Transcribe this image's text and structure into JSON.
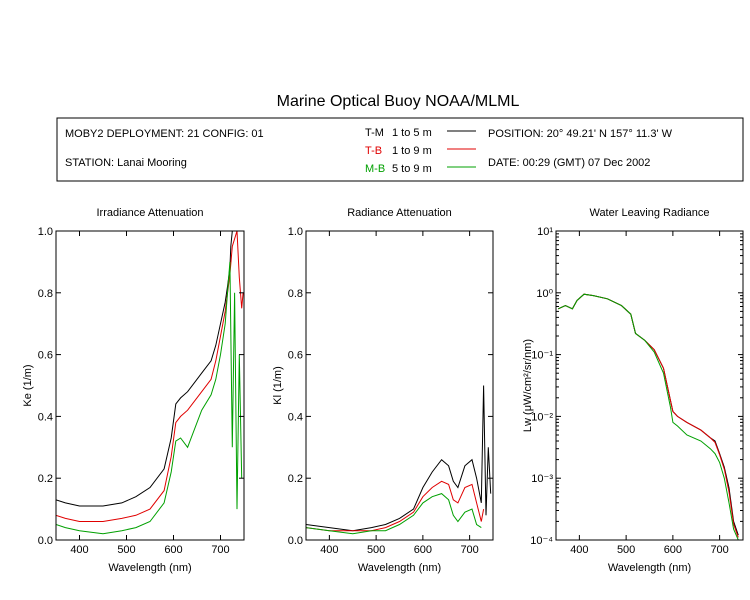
{
  "title": "Marine Optical Buoy NOAA/MLML",
  "info": {
    "deployment": "MOBY2 DEPLOYMENT: 21 CONFIG: 01",
    "station": "STATION: Lanai Mooring",
    "position": "POSITION: 20° 49.21' N   157° 11.3' W",
    "date": "DATE: 00:29 (GMT) 07 Dec 2002",
    "legend": [
      {
        "code": "T-M",
        "range": "1 to 5  m",
        "color": "#000000"
      },
      {
        "code": "T-B",
        "range": "1 to 9  m",
        "color": "#e00000"
      },
      {
        "code": "M-B",
        "range": "5 to 9  m",
        "color": "#00a000"
      }
    ]
  },
  "chart_data": [
    {
      "type": "line",
      "title": "Irradiance Attenuation",
      "xlabel": "Wavelength (nm)",
      "ylabel": "Ke  (1/m)",
      "xlim": [
        350,
        750
      ],
      "ylim": [
        0,
        1.0
      ],
      "xticks": [
        400,
        500,
        600,
        700
      ],
      "xtick_labels": [
        "400",
        "500",
        "600",
        "700"
      ],
      "yticks": [
        0,
        0.2,
        0.4,
        0.6,
        0.8,
        1.0
      ],
      "ytick_labels": [
        "0.0",
        "0.2",
        "0.4",
        "0.6",
        "0.8",
        "1.0"
      ],
      "series": [
        {
          "name": "T-M",
          "color": "#000000",
          "x": [
            350,
            370,
            400,
            450,
            490,
            520,
            550,
            580,
            595,
            605,
            615,
            630,
            660,
            680,
            690,
            700,
            710,
            715,
            720,
            722,
            725,
            730
          ],
          "y": [
            0.13,
            0.12,
            0.11,
            0.11,
            0.12,
            0.14,
            0.17,
            0.23,
            0.33,
            0.44,
            0.46,
            0.48,
            0.54,
            0.58,
            0.63,
            0.7,
            0.77,
            0.82,
            0.88,
            0.95,
            1.0,
            1.0
          ]
        },
        {
          "name": "T-B",
          "color": "#e00000",
          "x": [
            350,
            370,
            400,
            450,
            490,
            520,
            550,
            580,
            595,
            605,
            615,
            630,
            660,
            680,
            690,
            700,
            710,
            720,
            725,
            735,
            740,
            745,
            748
          ],
          "y": [
            0.08,
            0.07,
            0.06,
            0.06,
            0.07,
            0.08,
            0.1,
            0.16,
            0.27,
            0.38,
            0.4,
            0.42,
            0.48,
            0.52,
            0.58,
            0.66,
            0.74,
            0.86,
            0.95,
            1.0,
            0.85,
            0.75,
            0.8
          ]
        },
        {
          "name": "M-B",
          "color": "#00a000",
          "x": [
            350,
            370,
            400,
            450,
            490,
            520,
            550,
            580,
            595,
            605,
            615,
            630,
            660,
            680,
            690,
            700,
            710,
            715,
            720,
            725,
            730,
            735,
            740,
            745
          ],
          "y": [
            0.05,
            0.04,
            0.03,
            0.02,
            0.03,
            0.04,
            0.06,
            0.12,
            0.22,
            0.32,
            0.33,
            0.3,
            0.42,
            0.47,
            0.52,
            0.6,
            0.7,
            0.8,
            0.9,
            0.3,
            0.8,
            0.1,
            0.6,
            0.2
          ]
        }
      ]
    },
    {
      "type": "line",
      "title": "Radiance Attenuation",
      "xlabel": "Wavelength (nm)",
      "ylabel": "Kl  (1/m)",
      "xlim": [
        350,
        750
      ],
      "ylim": [
        0,
        1.0
      ],
      "xticks": [
        400,
        500,
        600,
        700
      ],
      "xtick_labels": [
        "400",
        "500",
        "600",
        "700"
      ],
      "yticks": [
        0,
        0.2,
        0.4,
        0.6,
        0.8,
        1.0
      ],
      "ytick_labels": [
        "0.0",
        "0.2",
        "0.4",
        "0.6",
        "0.8",
        "1.0"
      ],
      "series": [
        {
          "name": "T-M",
          "color": "#000000",
          "x": [
            350,
            400,
            450,
            490,
            520,
            550,
            580,
            600,
            620,
            640,
            655,
            665,
            675,
            690,
            705,
            715,
            725,
            730,
            735,
            740,
            745
          ],
          "y": [
            0.05,
            0.04,
            0.03,
            0.04,
            0.05,
            0.07,
            0.1,
            0.17,
            0.22,
            0.26,
            0.24,
            0.19,
            0.17,
            0.24,
            0.26,
            0.2,
            0.12,
            0.5,
            0.08,
            0.3,
            0.15
          ]
        },
        {
          "name": "T-B",
          "color": "#e00000",
          "x": [
            350,
            400,
            450,
            490,
            520,
            550,
            580,
            600,
            620,
            640,
            655,
            665,
            675,
            690,
            705,
            715,
            725,
            730
          ],
          "y": [
            0.04,
            0.03,
            0.03,
            0.03,
            0.04,
            0.06,
            0.09,
            0.14,
            0.17,
            0.19,
            0.18,
            0.13,
            0.12,
            0.17,
            0.18,
            0.12,
            0.06,
            0.1
          ]
        },
        {
          "name": "M-B",
          "color": "#00a000",
          "x": [
            350,
            400,
            450,
            490,
            520,
            550,
            580,
            600,
            620,
            640,
            655,
            665,
            675,
            690,
            705,
            715,
            725
          ],
          "y": [
            0.04,
            0.03,
            0.02,
            0.03,
            0.03,
            0.05,
            0.08,
            0.12,
            0.14,
            0.15,
            0.13,
            0.08,
            0.06,
            0.09,
            0.1,
            0.05,
            0.04
          ]
        }
      ]
    },
    {
      "type": "line",
      "title": "Water Leaving Radiance",
      "xlabel": "Wavelength (nm)",
      "ylabel": "Lw  (μW/cm²/sr/nm)",
      "xlim": [
        350,
        750
      ],
      "ylim": [
        0.0001,
        10
      ],
      "yscale": "log",
      "xticks": [
        400,
        500,
        600,
        700
      ],
      "xtick_labels": [
        "400",
        "500",
        "600",
        "700"
      ],
      "yticks": [
        0.0001,
        0.001,
        0.01,
        0.1,
        1,
        10
      ],
      "ytick_labels": [
        "10⁻⁴",
        "10⁻³",
        "10⁻²",
        "10⁻¹",
        "10⁰",
        "10¹"
      ],
      "series": [
        {
          "name": "T-M",
          "color": "#000000",
          "x": [
            355,
            370,
            385,
            395,
            410,
            430,
            460,
            490,
            510,
            520,
            540,
            560,
            580,
            595,
            600,
            610,
            630,
            660,
            680,
            690,
            700,
            710,
            720,
            730,
            740
          ],
          "y": [
            0.55,
            0.62,
            0.55,
            0.75,
            0.95,
            0.9,
            0.8,
            0.62,
            0.45,
            0.22,
            0.17,
            0.12,
            0.06,
            0.018,
            0.012,
            0.01,
            0.008,
            0.006,
            0.0045,
            0.004,
            0.0025,
            0.0015,
            0.0007,
            0.0002,
            0.00012
          ]
        },
        {
          "name": "T-B",
          "color": "#e00000",
          "x": [
            355,
            370,
            385,
            395,
            410,
            430,
            460,
            490,
            510,
            520,
            540,
            560,
            580,
            595,
            600,
            610,
            630,
            660,
            680,
            690,
            700,
            710,
            720,
            730,
            740
          ],
          "y": [
            0.55,
            0.62,
            0.55,
            0.75,
            0.95,
            0.9,
            0.8,
            0.62,
            0.45,
            0.22,
            0.17,
            0.12,
            0.06,
            0.018,
            0.012,
            0.01,
            0.008,
            0.006,
            0.0045,
            0.0038,
            0.0024,
            0.0014,
            0.0006,
            0.00018,
            0.00011
          ]
        },
        {
          "name": "M-B",
          "color": "#00a000",
          "x": [
            355,
            370,
            385,
            395,
            410,
            430,
            460,
            490,
            510,
            520,
            540,
            560,
            580,
            595,
            600,
            610,
            630,
            660,
            680,
            690,
            700,
            710,
            720,
            730,
            740
          ],
          "y": [
            0.55,
            0.62,
            0.55,
            0.75,
            0.95,
            0.9,
            0.8,
            0.62,
            0.45,
            0.22,
            0.17,
            0.11,
            0.05,
            0.014,
            0.008,
            0.007,
            0.005,
            0.004,
            0.003,
            0.0025,
            0.0018,
            0.001,
            0.0004,
            0.00015,
            0.0001
          ]
        }
      ]
    }
  ]
}
